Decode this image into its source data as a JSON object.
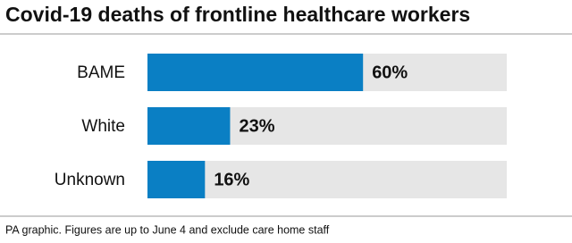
{
  "chart_data": {
    "type": "bar",
    "title": "Covid-19 deaths of frontline healthcare workers",
    "categories": [
      "BAME",
      "White",
      "Unknown"
    ],
    "values": [
      60,
      23,
      16
    ],
    "value_labels": [
      "60%",
      "23%",
      "16%"
    ],
    "color": "#0a7fc4",
    "track_color": "#e6e6e6",
    "xlim": [
      0,
      100
    ],
    "note": "PA graphic. Figures are up to June 4 and exclude care home staff"
  }
}
